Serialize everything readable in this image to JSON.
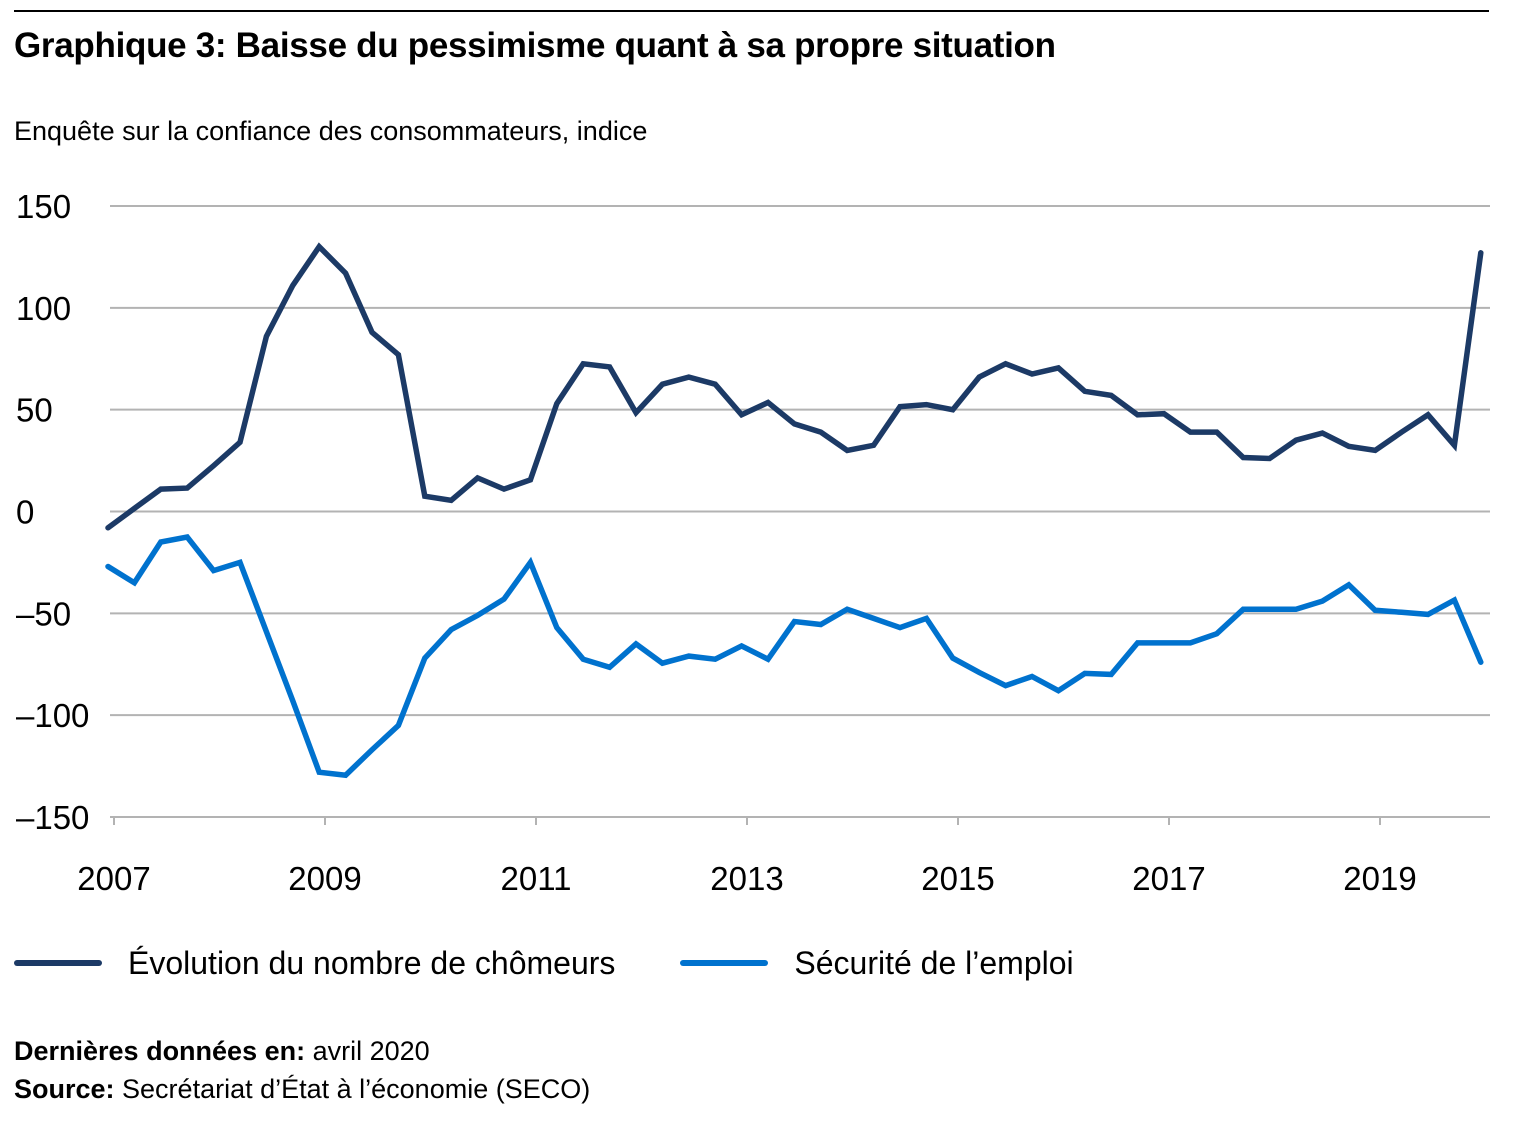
{
  "header": {
    "title": "Graphique 3: Baisse du pessimisme quant à sa propre situation",
    "subtitle": "Enquête sur la confiance des consommateurs, indice"
  },
  "footer": {
    "last_data_label": "Dernières données en:",
    "last_data_value": " avril 2020",
    "source_label": "Source:",
    "source_value": " Secrétariat d’État à l’économie (SECO)"
  },
  "colors": {
    "series_dark": "#1c3a66",
    "series_light": "#0072ce",
    "grid": "#b3b3b3"
  },
  "chart_data": {
    "type": "line",
    "title": "Graphique 3: Baisse du pessimisme quant à sa propre situation",
    "subtitle": "Enquête sur la confiance des consommateurs, indice",
    "xlabel": "",
    "ylabel": "",
    "frequency": "quarterly",
    "x_start": "2007-Q1",
    "x_end": "2020-Q1",
    "ylim": [
      -150,
      150
    ],
    "yticks": [
      150,
      100,
      50,
      0,
      -50,
      -100,
      -150
    ],
    "ytick_labels": [
      "150",
      "100",
      "50",
      "0",
      "–50",
      "–100",
      "–150"
    ],
    "xticks": [
      "2007",
      "2009",
      "2011",
      "2013",
      "2015",
      "2017",
      "2019"
    ],
    "grid": true,
    "legend_position": "bottom",
    "series": [
      {
        "name": "Évolution du nombre de chômeurs",
        "color": "#1c3a66",
        "values": [
          -8,
          1.5,
          11,
          11.5,
          22.5,
          34,
          86,
          111,
          130,
          117,
          88,
          77,
          7.5,
          5.5,
          16.5,
          11,
          15.5,
          53,
          72.5,
          71,
          48.5,
          62.5,
          66,
          62.5,
          47.5,
          53.5,
          43,
          39,
          30,
          32.5,
          51.5,
          52.5,
          50,
          66,
          72.5,
          67.5,
          70.5,
          59,
          57,
          47.5,
          48,
          39,
          39,
          26.5,
          26,
          35,
          38.5,
          32,
          30,
          39,
          47.5,
          32.5,
          127
        ]
      },
      {
        "name": "Sécurité de l’emploi",
        "color": "#0072ce",
        "values": [
          -27,
          -35,
          -15,
          -12.5,
          -29,
          -25,
          -59,
          -93,
          -128,
          -129.5,
          -117,
          -105,
          -72,
          -58,
          -51,
          -43,
          -25,
          -57,
          -72.5,
          -76.5,
          -65,
          -74.5,
          -71,
          -72.5,
          -66,
          -72.5,
          -54,
          -55.5,
          -48,
          -52.5,
          -57,
          -52.5,
          -72,
          -79,
          -85.5,
          -81,
          -88,
          -79.5,
          -80,
          -64.5,
          -64.5,
          -64.5,
          -60,
          -48,
          -48,
          -48,
          -44,
          -36,
          -48.5,
          -49.5,
          -50.5,
          -43.5,
          -74
        ]
      }
    ]
  }
}
